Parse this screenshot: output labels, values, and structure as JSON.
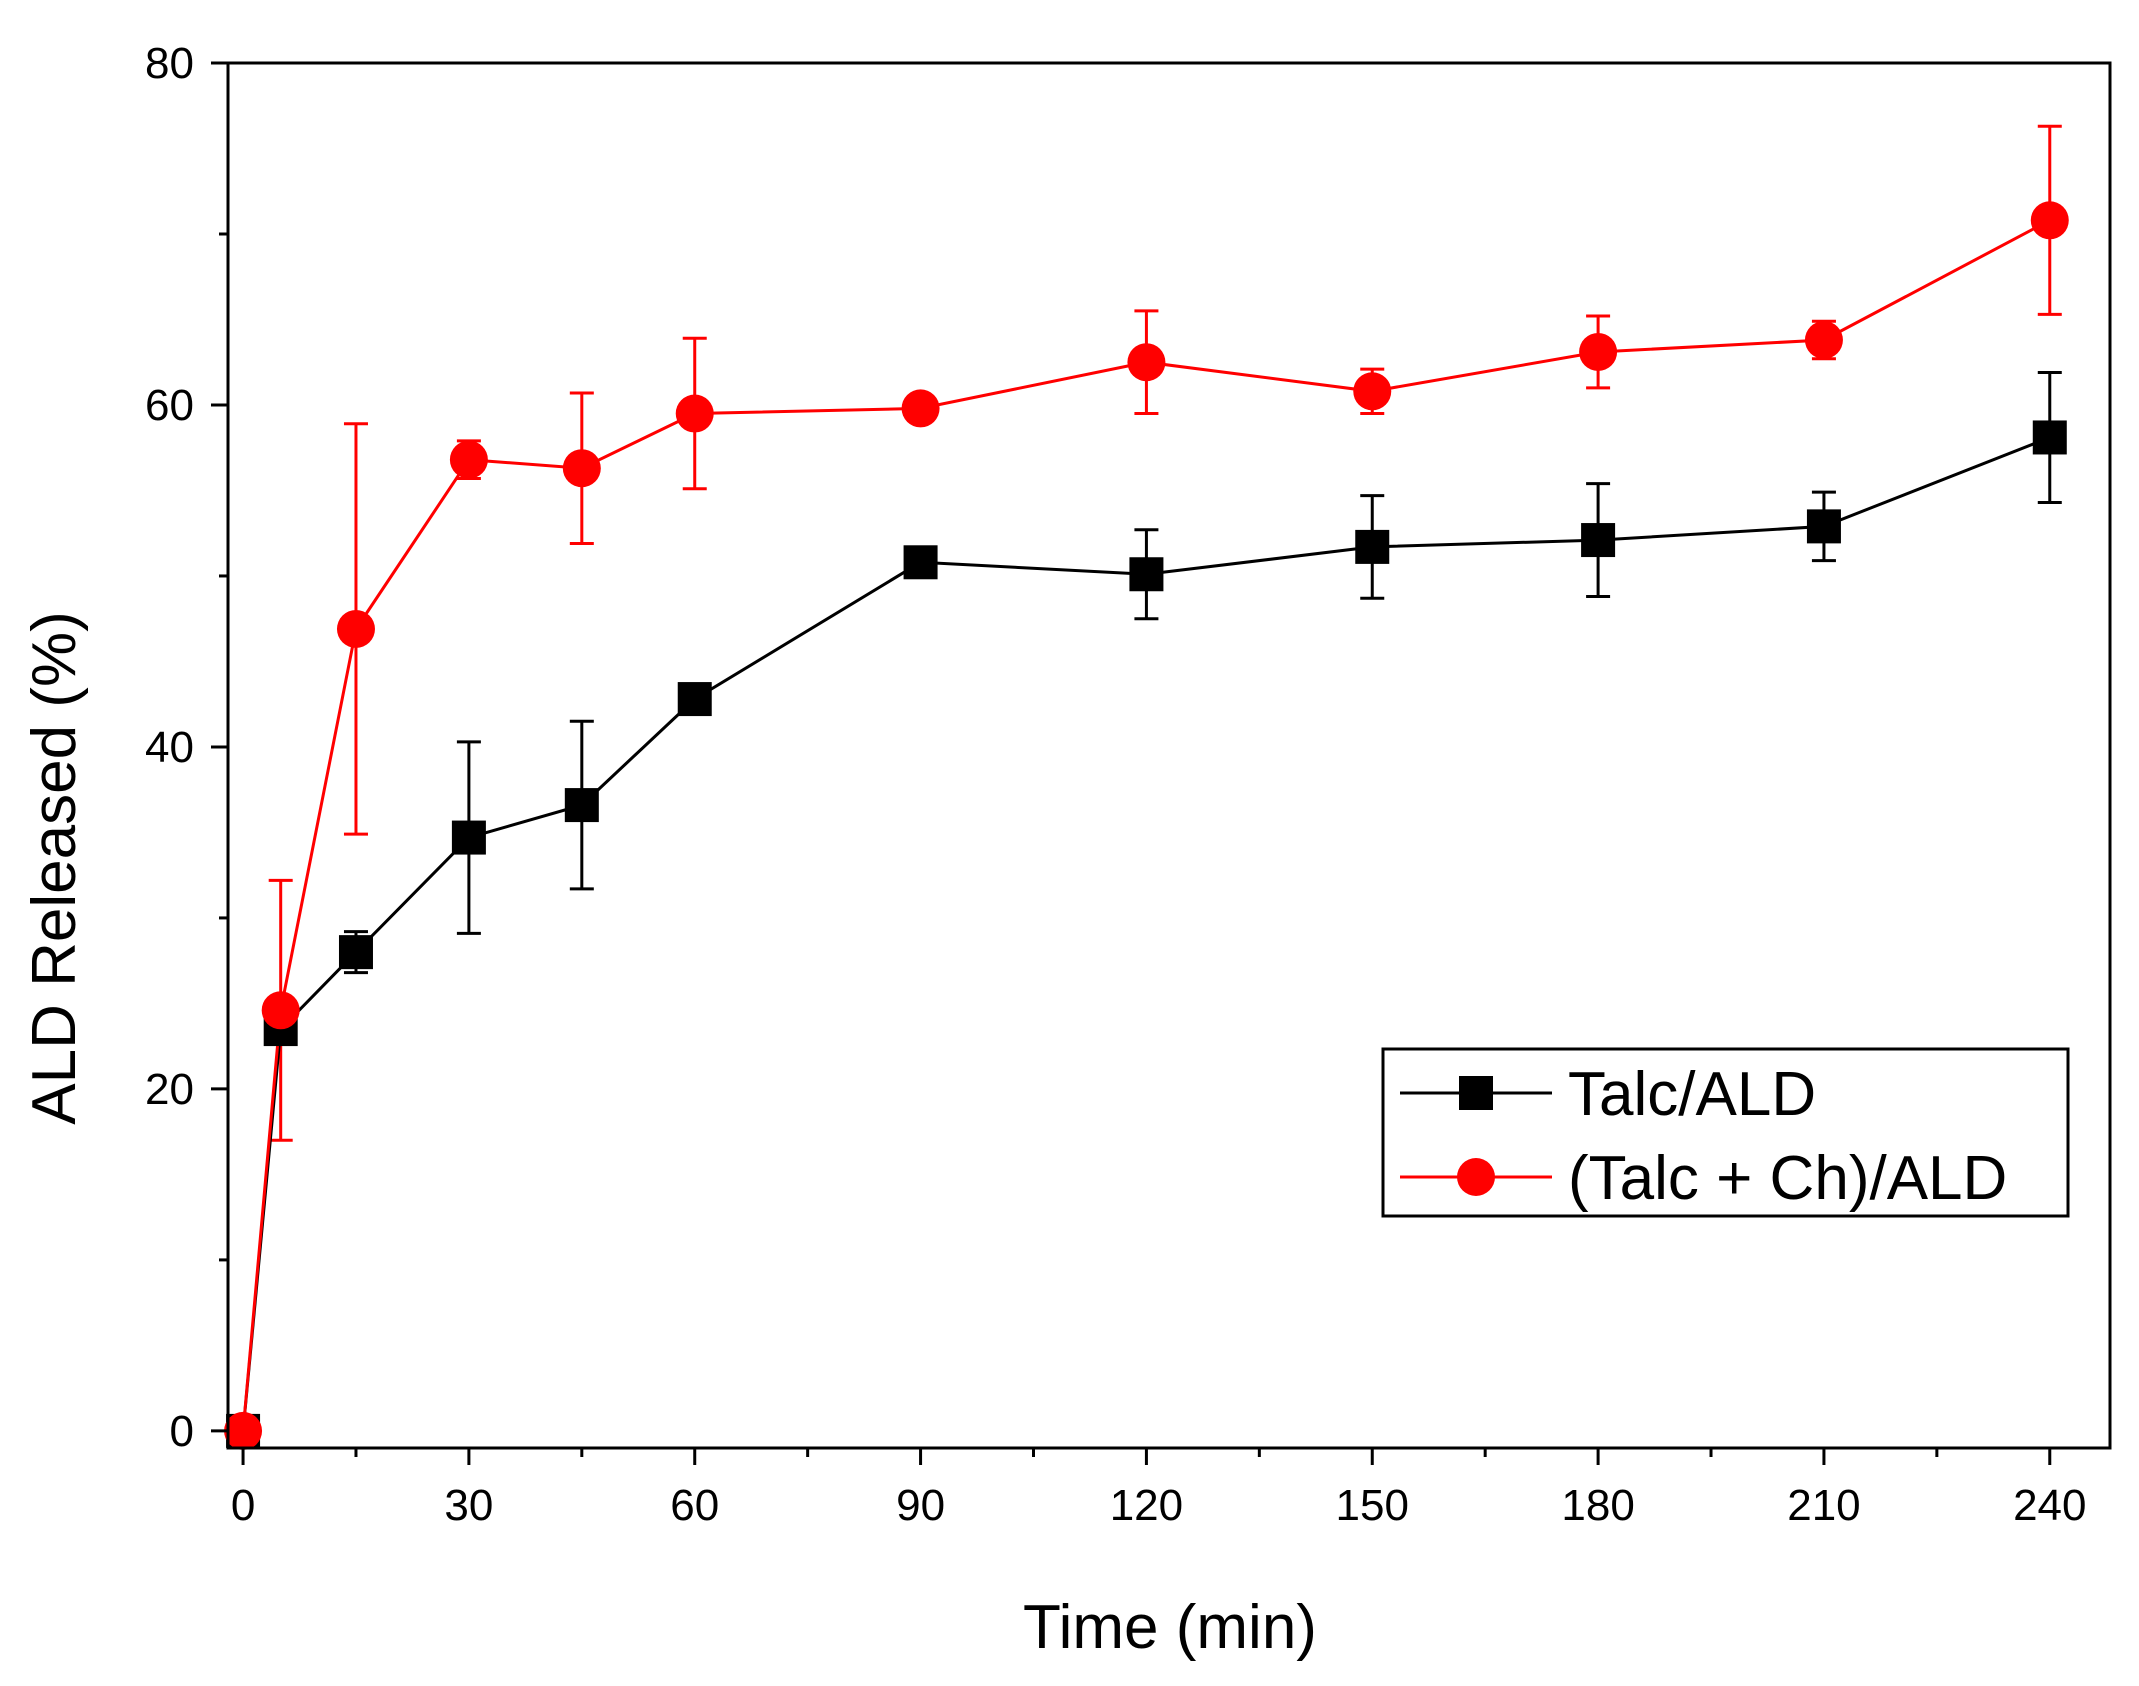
{
  "chart_data": {
    "type": "line",
    "title": "",
    "xlabel": "Time (min)",
    "ylabel": "ALD Released (%)",
    "xlim": [
      -2,
      248
    ],
    "ylim": [
      -1,
      80
    ],
    "xticks": [
      0,
      30,
      60,
      90,
      120,
      150,
      180,
      210,
      240
    ],
    "xticklabels": [
      "0",
      "30",
      "60",
      "90",
      "120",
      "150",
      "180",
      "210",
      "240"
    ],
    "xminor_step": 15,
    "yticks": [
      0,
      20,
      40,
      60,
      80
    ],
    "yticklabels": [
      "0",
      "20",
      "40",
      "60",
      "80"
    ],
    "yminor_step": 10,
    "grid": false,
    "legend_position": "lower-right",
    "series": [
      {
        "name": "Talc/ALD",
        "color": "#000000",
        "marker": "square",
        "x": [
          0,
          5,
          15,
          30,
          45,
          60,
          90,
          120,
          150,
          180,
          210,
          240
        ],
        "y": [
          0,
          23.5,
          28.0,
          34.7,
          36.6,
          42.8,
          50.8,
          50.1,
          51.7,
          52.1,
          52.9,
          58.1
        ],
        "err": [
          0,
          0.6,
          1.2,
          5.6,
          4.9,
          0.5,
          0.4,
          2.6,
          3.0,
          3.3,
          2.0,
          3.8
        ]
      },
      {
        "name": "(Talc + Ch)/ALD",
        "color": "#ff0000",
        "marker": "circle",
        "x": [
          0,
          5,
          15,
          30,
          45,
          60,
          90,
          120,
          150,
          180,
          210,
          240
        ],
        "y": [
          0,
          24.6,
          46.9,
          56.8,
          56.3,
          59.5,
          59.8,
          62.5,
          60.8,
          63.1,
          63.8,
          70.8
        ],
        "err": [
          0,
          7.6,
          12.0,
          1.1,
          4.4,
          4.4,
          0.5,
          3.0,
          1.3,
          2.1,
          1.1,
          5.5
        ]
      }
    ]
  }
}
